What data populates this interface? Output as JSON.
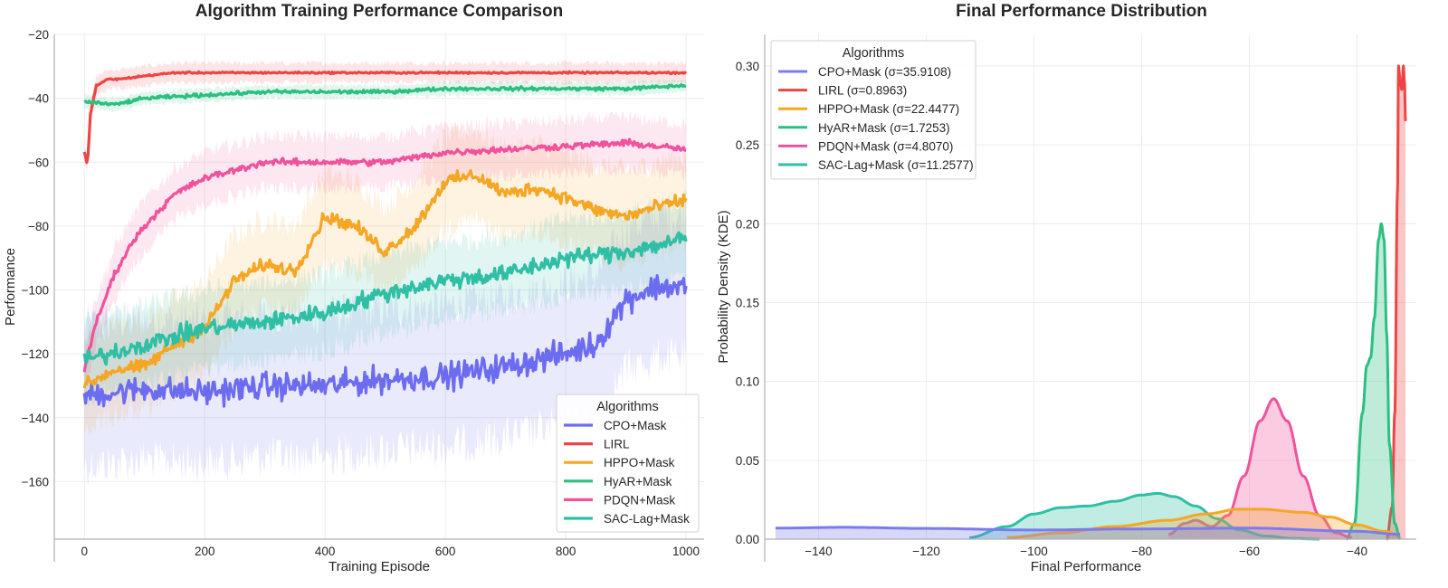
{
  "chart_data": [
    {
      "type": "line",
      "title": "Algorithm Training Performance Comparison",
      "xlabel": "Training Episode",
      "ylabel": "Performance",
      "xlim": [
        -50,
        1030
      ],
      "ylim": [
        -178,
        -20
      ],
      "xticks": [
        0,
        200,
        400,
        600,
        800,
        1000
      ],
      "yticks": [
        -160,
        -140,
        -120,
        -100,
        -80,
        -60,
        -40,
        -20
      ],
      "grid": true,
      "legend": {
        "title": "Algorithms",
        "position": "lower-right"
      },
      "series": [
        {
          "name": "CPO+Mask",
          "color": "#6c6cf0",
          "noise": 6,
          "band": 22,
          "x": [
            0,
            100,
            200,
            300,
            400,
            500,
            600,
            700,
            750,
            800,
            850,
            900,
            950,
            1000
          ],
          "y": [
            -133,
            -131,
            -132,
            -130,
            -130,
            -128,
            -127,
            -124,
            -122,
            -120,
            -117,
            -103,
            -99,
            -99
          ]
        },
        {
          "name": "LIRL",
          "color": "#ee4444",
          "noise": 0.4,
          "band": 3,
          "x": [
            0,
            5,
            10,
            20,
            40,
            60,
            100,
            150,
            300,
            500,
            700,
            1000
          ],
          "y": [
            -57,
            -61,
            -45,
            -36,
            -34,
            -34,
            -33,
            -32,
            -32,
            -32,
            -32,
            -32
          ]
        },
        {
          "name": "HPPO+Mask",
          "color": "#f5a623",
          "noise": 3,
          "band": 14,
          "x": [
            0,
            50,
            100,
            150,
            200,
            250,
            300,
            350,
            400,
            450,
            500,
            550,
            600,
            650,
            700,
            750,
            800,
            850,
            900,
            950,
            1000
          ],
          "y": [
            -130,
            -125,
            -124,
            -117,
            -112,
            -97,
            -92,
            -94,
            -77,
            -80,
            -88,
            -80,
            -66,
            -64,
            -70,
            -68,
            -71,
            -75,
            -77,
            -74,
            -72
          ]
        },
        {
          "name": "HyAR+Mask",
          "color": "#2bbf80",
          "noise": 0.8,
          "band": 2,
          "x": [
            0,
            50,
            100,
            200,
            300,
            400,
            500,
            600,
            700,
            800,
            900,
            1000
          ],
          "y": [
            -41,
            -42,
            -40,
            -39,
            -38,
            -38,
            -38,
            -37,
            -37,
            -37,
            -37,
            -36
          ]
        },
        {
          "name": "PDQN+Mask",
          "color": "#f0529c",
          "noise": 1.5,
          "band": 8,
          "x": [
            0,
            20,
            50,
            80,
            100,
            150,
            200,
            300,
            400,
            500,
            600,
            700,
            800,
            900,
            1000
          ],
          "y": [
            -125,
            -110,
            -95,
            -85,
            -80,
            -70,
            -65,
            -60,
            -60,
            -60,
            -57,
            -56,
            -55,
            -54,
            -56
          ]
        },
        {
          "name": "SAC-Lag+Mask",
          "color": "#2ebfa5",
          "noise": 4,
          "band": 12,
          "x": [
            0,
            100,
            200,
            300,
            400,
            500,
            600,
            700,
            800,
            900,
            1000
          ],
          "y": [
            -122,
            -117,
            -112,
            -110,
            -107,
            -101,
            -97,
            -95,
            -90,
            -88,
            -84
          ]
        }
      ]
    },
    {
      "type": "area",
      "title": "Final Performance Distribution",
      "xlabel": "Final Performance",
      "ylabel": "Probability Density (KDE)",
      "xlim": [
        -150,
        -29
      ],
      "ylim": [
        0,
        0.32
      ],
      "xticks": [
        -140,
        -120,
        -100,
        -80,
        -60,
        -40
      ],
      "yticks": [
        0.0,
        0.05,
        0.1,
        0.15,
        0.2,
        0.25,
        0.3
      ],
      "ytick_labels": [
        "0.00",
        "0.05",
        "0.10",
        "0.15",
        "0.20",
        "0.25",
        "0.30"
      ],
      "grid": true,
      "legend": {
        "title": "Algorithms",
        "position": "upper-left"
      },
      "series": [
        {
          "name": "CPO+Mask (σ=35.9108)",
          "color": "#7b7bf0",
          "x": [
            -148,
            -135,
            -120,
            -100,
            -80,
            -60,
            -40,
            -32
          ],
          "y": [
            0.007,
            0.0075,
            0.0068,
            0.0058,
            0.0065,
            0.007,
            0.005,
            0.003
          ]
        },
        {
          "name": "LIRL (σ=0.8963)",
          "color": "#ee4444",
          "x": [
            -34.5,
            -33.5,
            -33,
            -32.5,
            -32.3,
            -32,
            -31.7,
            -31.4,
            -31.2,
            -31
          ],
          "y": [
            0,
            0.02,
            0.08,
            0.22,
            0.3,
            0.29,
            0.285,
            0.3,
            0.29,
            0.265
          ]
        },
        {
          "name": "HPPO+Mask (σ=22.4477)",
          "color": "#f5a623",
          "x": [
            -105,
            -95,
            -85,
            -75,
            -68,
            -62,
            -58,
            -50,
            -45,
            -40,
            -35,
            -32
          ],
          "y": [
            0.001,
            0.004,
            0.008,
            0.012,
            0.016,
            0.019,
            0.019,
            0.017,
            0.014,
            0.009,
            0.005,
            0.003
          ]
        },
        {
          "name": "HyAR+Mask (σ=1.7253)",
          "color": "#2bbf80",
          "x": [
            -42,
            -40.5,
            -39,
            -38.2,
            -37.5,
            -36.8,
            -36,
            -35.5,
            -35,
            -34.5,
            -34,
            -33,
            -32
          ],
          "y": [
            0,
            0.01,
            0.08,
            0.11,
            0.115,
            0.14,
            0.19,
            0.2,
            0.19,
            0.13,
            0.06,
            0.01,
            0
          ]
        },
        {
          "name": "PDQN+Mask (σ=4.8070)",
          "color": "#f0529c",
          "x": [
            -75,
            -72,
            -70,
            -67,
            -64,
            -61,
            -58,
            -55.5,
            -53,
            -50,
            -47,
            -44,
            -41
          ],
          "y": [
            0.003,
            0.01,
            0.012,
            0.008,
            0.015,
            0.04,
            0.075,
            0.089,
            0.075,
            0.04,
            0.015,
            0.004,
            0.001
          ]
        },
        {
          "name": "SAC-Lag+Mask (σ=11.2577)",
          "color": "#2ebfa5",
          "x": [
            -112,
            -105,
            -100,
            -95,
            -90,
            -85,
            -80,
            -77,
            -74,
            -70,
            -66,
            -62,
            -57,
            -52,
            -47
          ],
          "y": [
            0.001,
            0.008,
            0.016,
            0.02,
            0.021,
            0.024,
            0.028,
            0.029,
            0.027,
            0.021,
            0.013,
            0.006,
            0.002,
            0.0005,
            0
          ]
        }
      ]
    }
  ]
}
